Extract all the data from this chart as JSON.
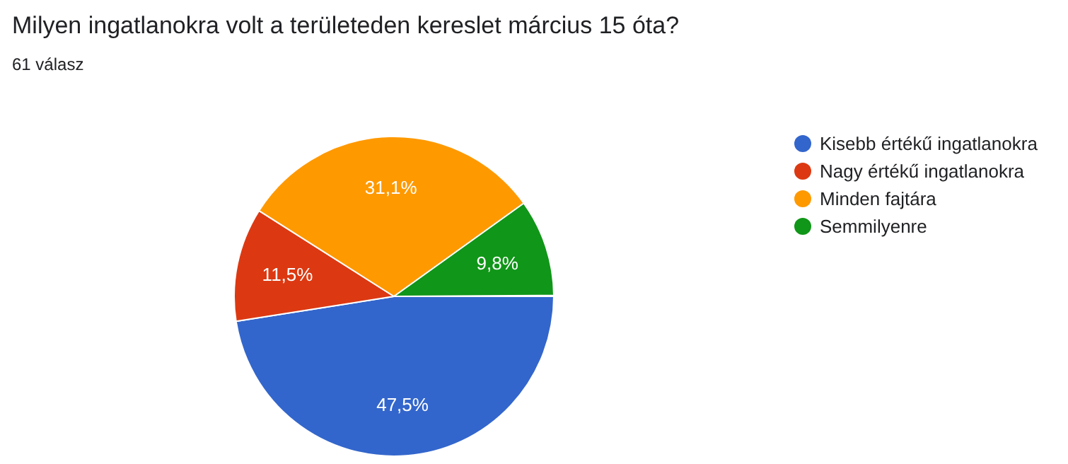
{
  "chart_data": {
    "type": "pie",
    "title": "Milyen ingatlanokra volt a területeden kereslet március 15 óta?",
    "subtitle": "61 válasz",
    "categories": [
      "Kisebb értékű ingatlanokra",
      "Nagy értékű ingatlanokra",
      "Minden fajtára",
      "Semmilyenre"
    ],
    "values": [
      47.5,
      11.5,
      31.1,
      9.8
    ],
    "value_labels": [
      "47,5%",
      "11,5%",
      "31,1%",
      "9,8%"
    ],
    "colors": [
      "#3366cc",
      "#dc3912",
      "#ff9900",
      "#109618"
    ],
    "legend": "right"
  }
}
